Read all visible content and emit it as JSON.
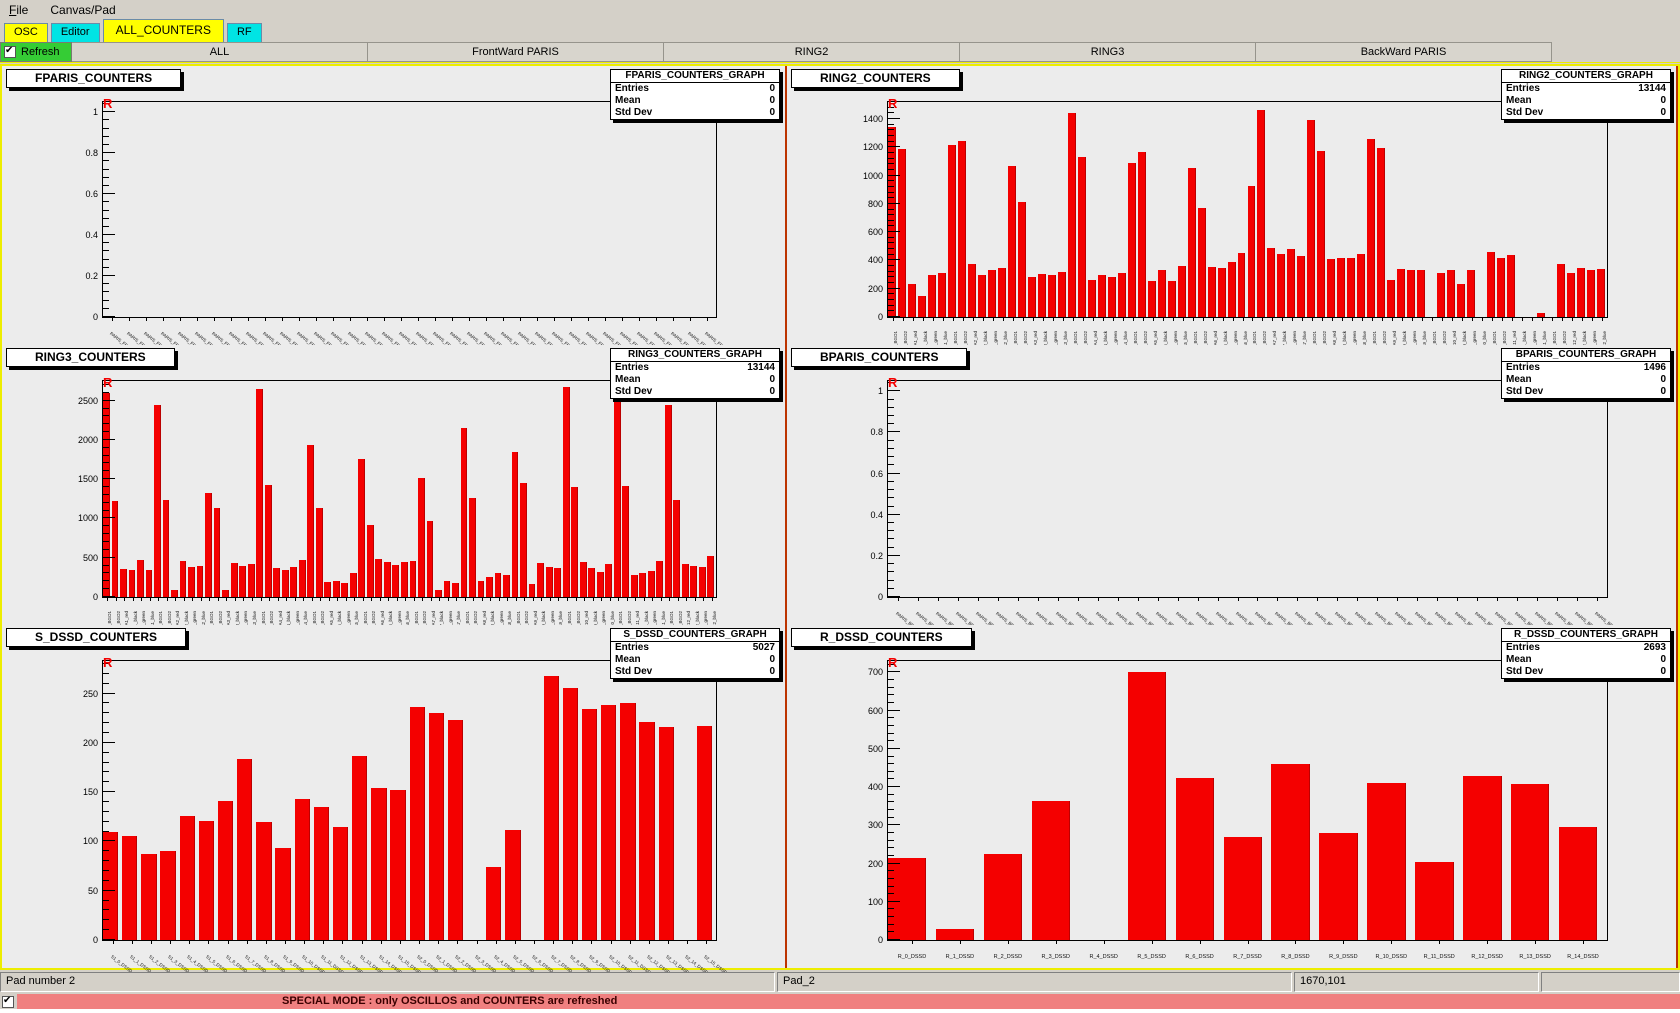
{
  "menu": {
    "items": [
      "File",
      "Canvas/Pad"
    ]
  },
  "tabs": [
    {
      "label": "OSC",
      "color": "yellow",
      "active": false
    },
    {
      "label": "Editor",
      "color": "cyan",
      "active": false
    },
    {
      "label": "ALL_COUNTERS",
      "color": "yellow",
      "active": true
    },
    {
      "label": "RF",
      "color": "cyan",
      "active": false
    }
  ],
  "toolbar": {
    "refresh_label": "Refresh",
    "refresh_checked": true,
    "buttons": [
      "ALL",
      "FrontWard PARIS",
      "RING2",
      "RING3",
      "BackWard PARIS"
    ]
  },
  "canvas": {
    "marker": "R"
  },
  "status_bar": {
    "fields": [
      "Pad number 2",
      "Pad_2",
      "1670,101",
      ""
    ]
  },
  "special_mode": {
    "checked": true,
    "text": "SPECIAL MODE : only OSCILLOS and COUNTERS are refreshed"
  },
  "colors": {
    "bar_red": "#f40000",
    "canvas_yellow_border": "#eded00",
    "pad_highlight_red": "#bc3400",
    "tab_yellow": "#ffff00",
    "tab_cyan": "#00e4e4",
    "refresh_green": "#35cc35",
    "special_banner_bg": "#f08080",
    "chrome_bg": "#d4d0c8",
    "canvas_bg": "#ececec"
  },
  "chart_data": [
    {
      "type": "bar",
      "name": "FPARIS_COUNTERS",
      "graph_title": "FPARIS_COUNTERS_GRAPH",
      "stats": {
        "entries": "0",
        "mean": "0",
        "std_dev": "0"
      },
      "ylim": [
        0,
        1.05
      ],
      "yticks": [
        0,
        0.2,
        0.4,
        0.6,
        0.8,
        1
      ],
      "label_style": "diag",
      "categories": [
        "PARIS_FR1D1",
        "PARIS_FR1D2",
        "PARIS_FR1D3",
        "PARIS_FR1D4",
        "PARIS_FR1D5",
        "PARIS_FR1D6",
        "PARIS_FR1D7",
        "PARIS_FR1D8",
        "PARIS_FR2D1",
        "PARIS_FR2D2",
        "PARIS_FR2D3",
        "PARIS_FR2D4",
        "PARIS_FR2D5",
        "PARIS_FR2D6",
        "PARIS_FR2D7",
        "PARIS_FR2D8",
        "PARIS_FR2D9",
        "PARIS_FR2D10",
        "PARIS_FR2D11",
        "PARIS_FR2D12",
        "PARIS_FR2D13",
        "PARIS_FR2D14",
        "PARIS_FR2D15",
        "PARIS_FR2D16",
        "PARIS_FR3D1",
        "PARIS_FR3D2",
        "PARIS_FR3D3",
        "PARIS_FR3D4",
        "PARIS_FR3D5",
        "PARIS_FR3D6",
        "PARIS_FR3D7",
        "PARIS_FR3D8",
        "PARIS_FR3D9",
        "PARIS_FR3D10",
        "PARIS_FR3D11",
        "PARIS_FR3D12"
      ],
      "values": [
        0,
        0,
        0,
        0,
        0,
        0,
        0,
        0,
        0,
        0,
        0,
        0,
        0,
        0,
        0,
        0,
        0,
        0,
        0,
        0,
        0,
        0,
        0,
        0,
        0,
        0,
        0,
        0,
        0,
        0,
        0,
        0,
        0,
        0,
        0,
        0
      ]
    },
    {
      "type": "bar",
      "name": "RING2_COUNTERS",
      "graph_title": "RING2_COUNTERS_GRAPH",
      "stats": {
        "entries": "13144",
        "mean": "0",
        "std_dev": "0"
      },
      "ylim": [
        0,
        1520
      ],
      "yticks": [
        0,
        200,
        400,
        600,
        800,
        1000,
        1200,
        1400
      ],
      "label_style": "vert",
      "categories": [
        "2A1_BGO1",
        "2A1_BGO2",
        "2A1_red",
        "2A1_black",
        "2A1_green",
        "2A1_blue",
        "2A2_BGO1",
        "2A2_BGO2",
        "2A2_red",
        "2A2_black",
        "2A2_green",
        "2A2_blue",
        "2A3_BGO1",
        "2A3_BGO2",
        "2A3_red",
        "2A3_black",
        "2A3_green",
        "2A3_blue",
        "2A4_BGO1",
        "2A4_BGO2",
        "2A4_red",
        "2A4_black",
        "2A4_green",
        "2A4_blue",
        "2A5_BGO1",
        "2A5_BGO2",
        "2A5_red",
        "2A5_black",
        "2A5_green",
        "2A5_blue",
        "2A6_BGO1",
        "2A6_BGO2",
        "2A6_red",
        "2A6_black",
        "2A6_green",
        "2A6_blue",
        "2A7_BGO1",
        "2A7_BGO2",
        "2A7_red",
        "2A7_black",
        "2A7_green",
        "2A7_blue",
        "2A8_BGO1",
        "2A8_BGO2",
        "2A8_red",
        "2A8_black",
        "2A8_green",
        "2A8_blue",
        "2A9_BGO1",
        "2A9_BGO2",
        "2A9_red",
        "2A9_black",
        "2A9_green",
        "2A9_blue",
        "2A10_BGO1",
        "2A10_BGO2",
        "2A10_red",
        "2A10_black",
        "2A10_green",
        "2A10_blue",
        "2A11_BGO1",
        "2A11_BGO2",
        "2A11_red",
        "2A11_black",
        "2A11_green",
        "2A11_blue",
        "2A12_BGO1",
        "2A12_BGO2",
        "2A12_red",
        "2A12_black",
        "2A12_green",
        "2A12_blue"
      ],
      "values": [
        1340,
        1190,
        230,
        150,
        300,
        310,
        1215,
        1245,
        375,
        295,
        335,
        345,
        1065,
        815,
        280,
        305,
        295,
        320,
        1445,
        1130,
        265,
        300,
        285,
        310,
        1090,
        1165,
        255,
        335,
        255,
        360,
        1050,
        770,
        355,
        345,
        390,
        455,
        925,
        1465,
        490,
        445,
        480,
        430,
        1395,
        1175,
        410,
        415,
        420,
        445,
        1260,
        1195,
        260,
        340,
        335,
        335,
        0,
        310,
        330,
        235,
        330,
        0,
        460,
        420,
        435,
        0,
        0,
        25,
        0,
        375,
        310,
        345,
        330,
        340
      ]
    },
    {
      "type": "bar",
      "name": "RING3_COUNTERS",
      "graph_title": "RING3_COUNTERS_GRAPH",
      "stats": {
        "entries": "13144",
        "mean": "0",
        "std_dev": "0"
      },
      "ylim": [
        0,
        2750
      ],
      "yticks": [
        0,
        500,
        1000,
        1500,
        2000,
        2500
      ],
      "label_style": "vert",
      "categories": [
        "3A1_BGO1",
        "3A1_BGO2",
        "3A1_red",
        "3A1_black",
        "3A1_green",
        "3A1_blue",
        "3A2_BGO1",
        "3A2_BGO2",
        "3A2_red",
        "3A2_black",
        "3A2_green",
        "3A2_blue",
        "3A3_BGO1",
        "3A3_BGO2",
        "3A3_red",
        "3A3_black",
        "3A3_green",
        "3A3_blue",
        "3A4_BGO1",
        "3A4_BGO2",
        "3A4_red",
        "3A4_black",
        "3A4_green",
        "3A4_blue",
        "3A5_BGO1",
        "3A5_BGO2",
        "3A5_red",
        "3A5_black",
        "3A5_green",
        "3A5_blue",
        "3A6_BGO1",
        "3A6_BGO2",
        "3A6_red",
        "3A6_black",
        "3A6_green",
        "3A6_blue",
        "3A7_BGO1",
        "3A7_BGO2",
        "3A7_red",
        "3A7_black",
        "3A7_green",
        "3A7_blue",
        "3A8_BGO1",
        "3A8_BGO2",
        "3A8_red",
        "3A8_black",
        "3A8_green",
        "3A8_blue",
        "3A9_BGO1",
        "3A9_BGO2",
        "3A9_red",
        "3A9_black",
        "3A9_green",
        "3A9_blue",
        "3A10_BGO1",
        "3A10_BGO2",
        "3A10_red",
        "3A10_black",
        "3A10_green",
        "3A10_blue",
        "3A11_BGO1",
        "3A11_BGO2",
        "3A11_red",
        "3A11_black",
        "3A11_green",
        "3A11_blue",
        "3A12_BGO1",
        "3A12_BGO2",
        "3A12_red",
        "3A12_black",
        "3A12_green",
        "3A12_blue"
      ],
      "values": [
        2600,
        1220,
        360,
        345,
        470,
        350,
        2450,
        1240,
        90,
        455,
        380,
        395,
        1330,
        1130,
        85,
        430,
        395,
        420,
        2650,
        1420,
        370,
        350,
        380,
        475,
        1940,
        1135,
        185,
        200,
        175,
        300,
        1755,
        915,
        480,
        440,
        405,
        445,
        455,
        1520,
        965,
        85,
        210,
        175,
        2155,
        1265,
        200,
        250,
        310,
        280,
        1845,
        1450,
        160,
        430,
        380,
        365,
        2680,
        1400,
        440,
        375,
        315,
        425,
        2500,
        1415,
        280,
        300,
        325,
        455,
        2450,
        1235,
        420,
        395,
        380,
        520
      ]
    },
    {
      "type": "bar",
      "name": "BPARIS_COUNTERS",
      "graph_title": "BPARIS_COUNTERS_GRAPH",
      "stats": {
        "entries": "1496",
        "mean": "0",
        "std_dev": "0"
      },
      "ylim": [
        0,
        1.05
      ],
      "yticks": [
        0,
        0.2,
        0.4,
        0.6,
        0.8,
        1
      ],
      "label_style": "diag",
      "categories": [
        "PARIS_BR1D1",
        "PARIS_BR1D2",
        "PARIS_BR1D3",
        "PARIS_BR1D4",
        "PARIS_BR1D5",
        "PARIS_BR1D6",
        "PARIS_BR1D7",
        "PARIS_BR1D8",
        "PARIS_BR2D1",
        "PARIS_BR2D2",
        "PARIS_BR2D3",
        "PARIS_BR2D4",
        "PARIS_BR2D5",
        "PARIS_BR2D6",
        "PARIS_BR2D7",
        "PARIS_BR2D8",
        "PARIS_BR2D9",
        "PARIS_BR2D10",
        "PARIS_BR2D11",
        "PARIS_BR2D12",
        "PARIS_BR2D13",
        "PARIS_BR2D14",
        "PARIS_BR2D15",
        "PARIS_BR2D16",
        "PARIS_BR3D1",
        "PARIS_BR3D2",
        "PARIS_BR3D3",
        "PARIS_BR3D4",
        "PARIS_BR3D5",
        "PARIS_BR3D6",
        "PARIS_BR3D7",
        "PARIS_BR3D8",
        "PARIS_BR3D9",
        "PARIS_BR3D10",
        "PARIS_BR3D11",
        "PARIS_BR3D12"
      ],
      "values": [
        0,
        0,
        0,
        0,
        0,
        0,
        0,
        0,
        0,
        0,
        0,
        0,
        0,
        0,
        0,
        0,
        0,
        0,
        0,
        0,
        0,
        0,
        0,
        0,
        0,
        0,
        0,
        0,
        0,
        0,
        0,
        0,
        0,
        0,
        0,
        0
      ]
    },
    {
      "type": "bar",
      "name": "S_DSSD_COUNTERS",
      "graph_title": "S_DSSD_COUNTERS_GRAPH",
      "stats": {
        "entries": "5027",
        "mean": "0",
        "std_dev": "0"
      },
      "ylim": [
        0,
        283
      ],
      "yticks": [
        0,
        50,
        100,
        150,
        200,
        250
      ],
      "label_style": "diag",
      "categories": [
        "S1_0_DSSD",
        "S1_1_DSSD",
        "S1_2_DSSD",
        "S1_3_DSSD",
        "S1_4_DSSD",
        "S1_5_DSSD",
        "S1_6_DSSD",
        "S1_7_DSSD",
        "S1_8_DSSD",
        "S1_9_DSSD",
        "S1_10_DSSD",
        "S1_11_DSSD",
        "S1_12_DSSD",
        "S1_13_DSSD",
        "S1_14_DSSD",
        "S1_15_DSSD",
        "S2_0_DSSD",
        "S2_1_DSSD",
        "S2_2_DSSD",
        "S2_3_DSSD",
        "S2_4_DSSD",
        "S2_5_DSSD",
        "S2_6_DSSD",
        "S2_7_DSSD",
        "S2_8_DSSD",
        "S2_9_DSSD",
        "S2_10_DSSD",
        "S2_11_DSSD",
        "S2_12_DSSD",
        "S2_13_DSSD",
        "S2_14_DSSD",
        "S2_15_DSSD"
      ],
      "values": [
        110,
        105,
        87,
        90,
        126,
        121,
        141,
        184,
        120,
        93,
        143,
        135,
        115,
        187,
        154,
        152,
        236,
        230,
        223,
        0,
        74,
        112,
        0,
        268,
        256,
        234,
        238,
        240,
        221,
        216,
        0,
        217
      ]
    },
    {
      "type": "bar",
      "name": "R_DSSD_COUNTERS",
      "graph_title": "R_DSSD_COUNTERS_GRAPH",
      "stats": {
        "entries": "2693",
        "mean": "0",
        "std_dev": "0"
      },
      "ylim": [
        0,
        730
      ],
      "yticks": [
        0,
        100,
        200,
        300,
        400,
        500,
        600,
        700
      ],
      "label_style": "horiz",
      "categories": [
        "R_0_DSSD",
        "R_1_DSSD",
        "R_2_DSSD",
        "R_3_DSSD",
        "R_4_DSSD",
        "R_5_DSSD",
        "R_6_DSSD",
        "R_7_DSSD",
        "R_8_DSSD",
        "R_9_DSSD",
        "R_10_DSSD",
        "R_11_DSSD",
        "R_12_DSSD",
        "R_13_DSSD",
        "R_14_DSSD"
      ],
      "values": [
        215,
        30,
        225,
        365,
        0,
        700,
        425,
        270,
        460,
        280,
        412,
        205,
        428,
        407,
        295
      ]
    }
  ]
}
